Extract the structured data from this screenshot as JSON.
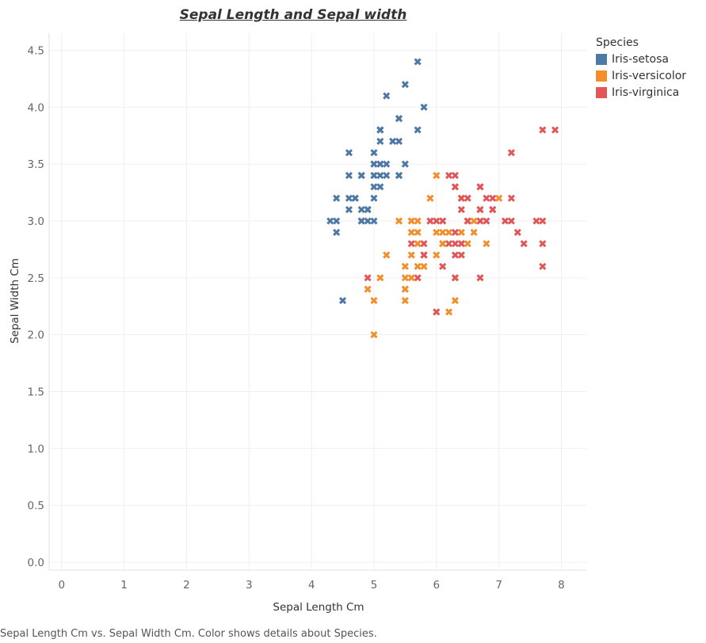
{
  "chart_data": {
    "type": "scatter",
    "title": "Sepal Length and Sepal width",
    "xlabel": "Sepal Length Cm",
    "ylabel": "Sepal Width Cm",
    "xlim": [
      -0.2,
      8.4
    ],
    "ylim": [
      -0.07,
      4.65
    ],
    "xticks": [
      "0",
      "1",
      "2",
      "3",
      "4",
      "5",
      "6",
      "7",
      "8"
    ],
    "yticks": [
      "0.0",
      "0.5",
      "1.0",
      "1.5",
      "2.0",
      "2.5",
      "3.0",
      "3.5",
      "4.0",
      "4.5"
    ],
    "grid": true,
    "marker": "x",
    "legend_title": "Species",
    "legend_position": "right",
    "caption": "Sepal Length Cm vs. Sepal Width Cm.  Color shows details about Species.",
    "series": [
      {
        "name": "Iris-setosa",
        "color": "#4e79a7",
        "points": [
          [
            5.1,
            3.5
          ],
          [
            4.9,
            3.0
          ],
          [
            4.7,
            3.2
          ],
          [
            4.6,
            3.1
          ],
          [
            5.0,
            3.6
          ],
          [
            5.4,
            3.9
          ],
          [
            4.6,
            3.4
          ],
          [
            5.0,
            3.4
          ],
          [
            4.4,
            2.9
          ],
          [
            4.9,
            3.1
          ],
          [
            5.4,
            3.7
          ],
          [
            4.8,
            3.4
          ],
          [
            4.8,
            3.0
          ],
          [
            4.3,
            3.0
          ],
          [
            5.8,
            4.0
          ],
          [
            5.7,
            4.4
          ],
          [
            5.4,
            3.9
          ],
          [
            5.1,
            3.5
          ],
          [
            5.7,
            3.8
          ],
          [
            5.1,
            3.8
          ],
          [
            5.4,
            3.4
          ],
          [
            5.1,
            3.7
          ],
          [
            4.6,
            3.6
          ],
          [
            5.1,
            3.3
          ],
          [
            4.8,
            3.4
          ],
          [
            5.0,
            3.0
          ],
          [
            5.0,
            3.4
          ],
          [
            5.2,
            3.5
          ],
          [
            5.2,
            3.4
          ],
          [
            4.7,
            3.2
          ],
          [
            4.8,
            3.1
          ],
          [
            5.4,
            3.4
          ],
          [
            5.2,
            4.1
          ],
          [
            5.5,
            4.2
          ],
          [
            4.9,
            3.1
          ],
          [
            5.0,
            3.2
          ],
          [
            5.5,
            3.5
          ],
          [
            4.9,
            3.1
          ],
          [
            4.4,
            3.0
          ],
          [
            5.1,
            3.4
          ],
          [
            5.0,
            3.5
          ],
          [
            4.5,
            2.3
          ],
          [
            4.4,
            3.2
          ],
          [
            5.0,
            3.5
          ],
          [
            5.1,
            3.8
          ],
          [
            4.8,
            3.0
          ],
          [
            5.1,
            3.8
          ],
          [
            4.6,
            3.2
          ],
          [
            5.3,
            3.7
          ],
          [
            5.0,
            3.3
          ]
        ]
      },
      {
        "name": "Iris-versicolor",
        "color": "#f28e2b",
        "points": [
          [
            7.0,
            3.2
          ],
          [
            6.4,
            3.2
          ],
          [
            6.9,
            3.1
          ],
          [
            5.5,
            2.3
          ],
          [
            6.5,
            2.8
          ],
          [
            5.7,
            2.8
          ],
          [
            6.3,
            3.3
          ],
          [
            4.9,
            2.4
          ],
          [
            6.6,
            2.9
          ],
          [
            5.2,
            2.7
          ],
          [
            5.0,
            2.0
          ],
          [
            5.9,
            3.0
          ],
          [
            6.0,
            2.2
          ],
          [
            6.1,
            2.9
          ],
          [
            5.6,
            2.9
          ],
          [
            6.7,
            3.1
          ],
          [
            5.6,
            3.0
          ],
          [
            5.8,
            2.7
          ],
          [
            6.2,
            2.2
          ],
          [
            5.6,
            2.5
          ],
          [
            5.9,
            3.2
          ],
          [
            6.1,
            2.8
          ],
          [
            6.3,
            2.5
          ],
          [
            6.1,
            2.8
          ],
          [
            6.4,
            2.9
          ],
          [
            6.6,
            3.0
          ],
          [
            6.8,
            2.8
          ],
          [
            6.7,
            3.0
          ],
          [
            6.0,
            2.9
          ],
          [
            5.7,
            2.6
          ],
          [
            5.5,
            2.4
          ],
          [
            5.5,
            2.4
          ],
          [
            5.8,
            2.7
          ],
          [
            6.0,
            2.7
          ],
          [
            5.4,
            3.0
          ],
          [
            6.0,
            3.4
          ],
          [
            6.7,
            3.1
          ],
          [
            6.3,
            2.3
          ],
          [
            5.6,
            3.0
          ],
          [
            5.5,
            2.5
          ],
          [
            5.5,
            2.6
          ],
          [
            6.1,
            3.0
          ],
          [
            5.8,
            2.6
          ],
          [
            5.0,
            2.3
          ],
          [
            5.6,
            2.7
          ],
          [
            5.7,
            3.0
          ],
          [
            5.7,
            2.9
          ],
          [
            6.2,
            2.9
          ],
          [
            5.1,
            2.5
          ],
          [
            5.7,
            2.8
          ]
        ]
      },
      {
        "name": "Iris-virginica",
        "color": "#e15759",
        "points": [
          [
            6.3,
            3.3
          ],
          [
            5.8,
            2.7
          ],
          [
            7.1,
            3.0
          ],
          [
            6.3,
            2.9
          ],
          [
            6.5,
            3.0
          ],
          [
            7.6,
            3.0
          ],
          [
            4.9,
            2.5
          ],
          [
            7.3,
            2.9
          ],
          [
            6.7,
            2.5
          ],
          [
            7.2,
            3.6
          ],
          [
            6.5,
            3.2
          ],
          [
            6.4,
            2.7
          ],
          [
            6.8,
            3.0
          ],
          [
            5.7,
            2.5
          ],
          [
            5.8,
            2.8
          ],
          [
            6.4,
            3.2
          ],
          [
            6.5,
            3.0
          ],
          [
            7.7,
            3.8
          ],
          [
            7.7,
            2.6
          ],
          [
            6.0,
            2.2
          ],
          [
            6.9,
            3.2
          ],
          [
            5.6,
            2.8
          ],
          [
            7.7,
            2.8
          ],
          [
            6.3,
            2.7
          ],
          [
            6.7,
            3.3
          ],
          [
            7.2,
            3.2
          ],
          [
            6.2,
            2.8
          ],
          [
            6.1,
            3.0
          ],
          [
            6.4,
            2.8
          ],
          [
            7.2,
            3.0
          ],
          [
            7.4,
            2.8
          ],
          [
            7.9,
            3.8
          ],
          [
            6.4,
            2.8
          ],
          [
            6.3,
            2.8
          ],
          [
            6.1,
            2.6
          ],
          [
            7.7,
            3.0
          ],
          [
            6.3,
            3.4
          ],
          [
            6.4,
            3.1
          ],
          [
            6.0,
            3.0
          ],
          [
            6.9,
            3.1
          ],
          [
            6.7,
            3.1
          ],
          [
            6.9,
            3.1
          ],
          [
            5.8,
            2.7
          ],
          [
            6.8,
            3.2
          ],
          [
            6.7,
            3.3
          ],
          [
            6.7,
            3.0
          ],
          [
            6.3,
            2.5
          ],
          [
            6.5,
            3.0
          ],
          [
            6.2,
            3.4
          ],
          [
            5.9,
            3.0
          ]
        ]
      }
    ]
  }
}
